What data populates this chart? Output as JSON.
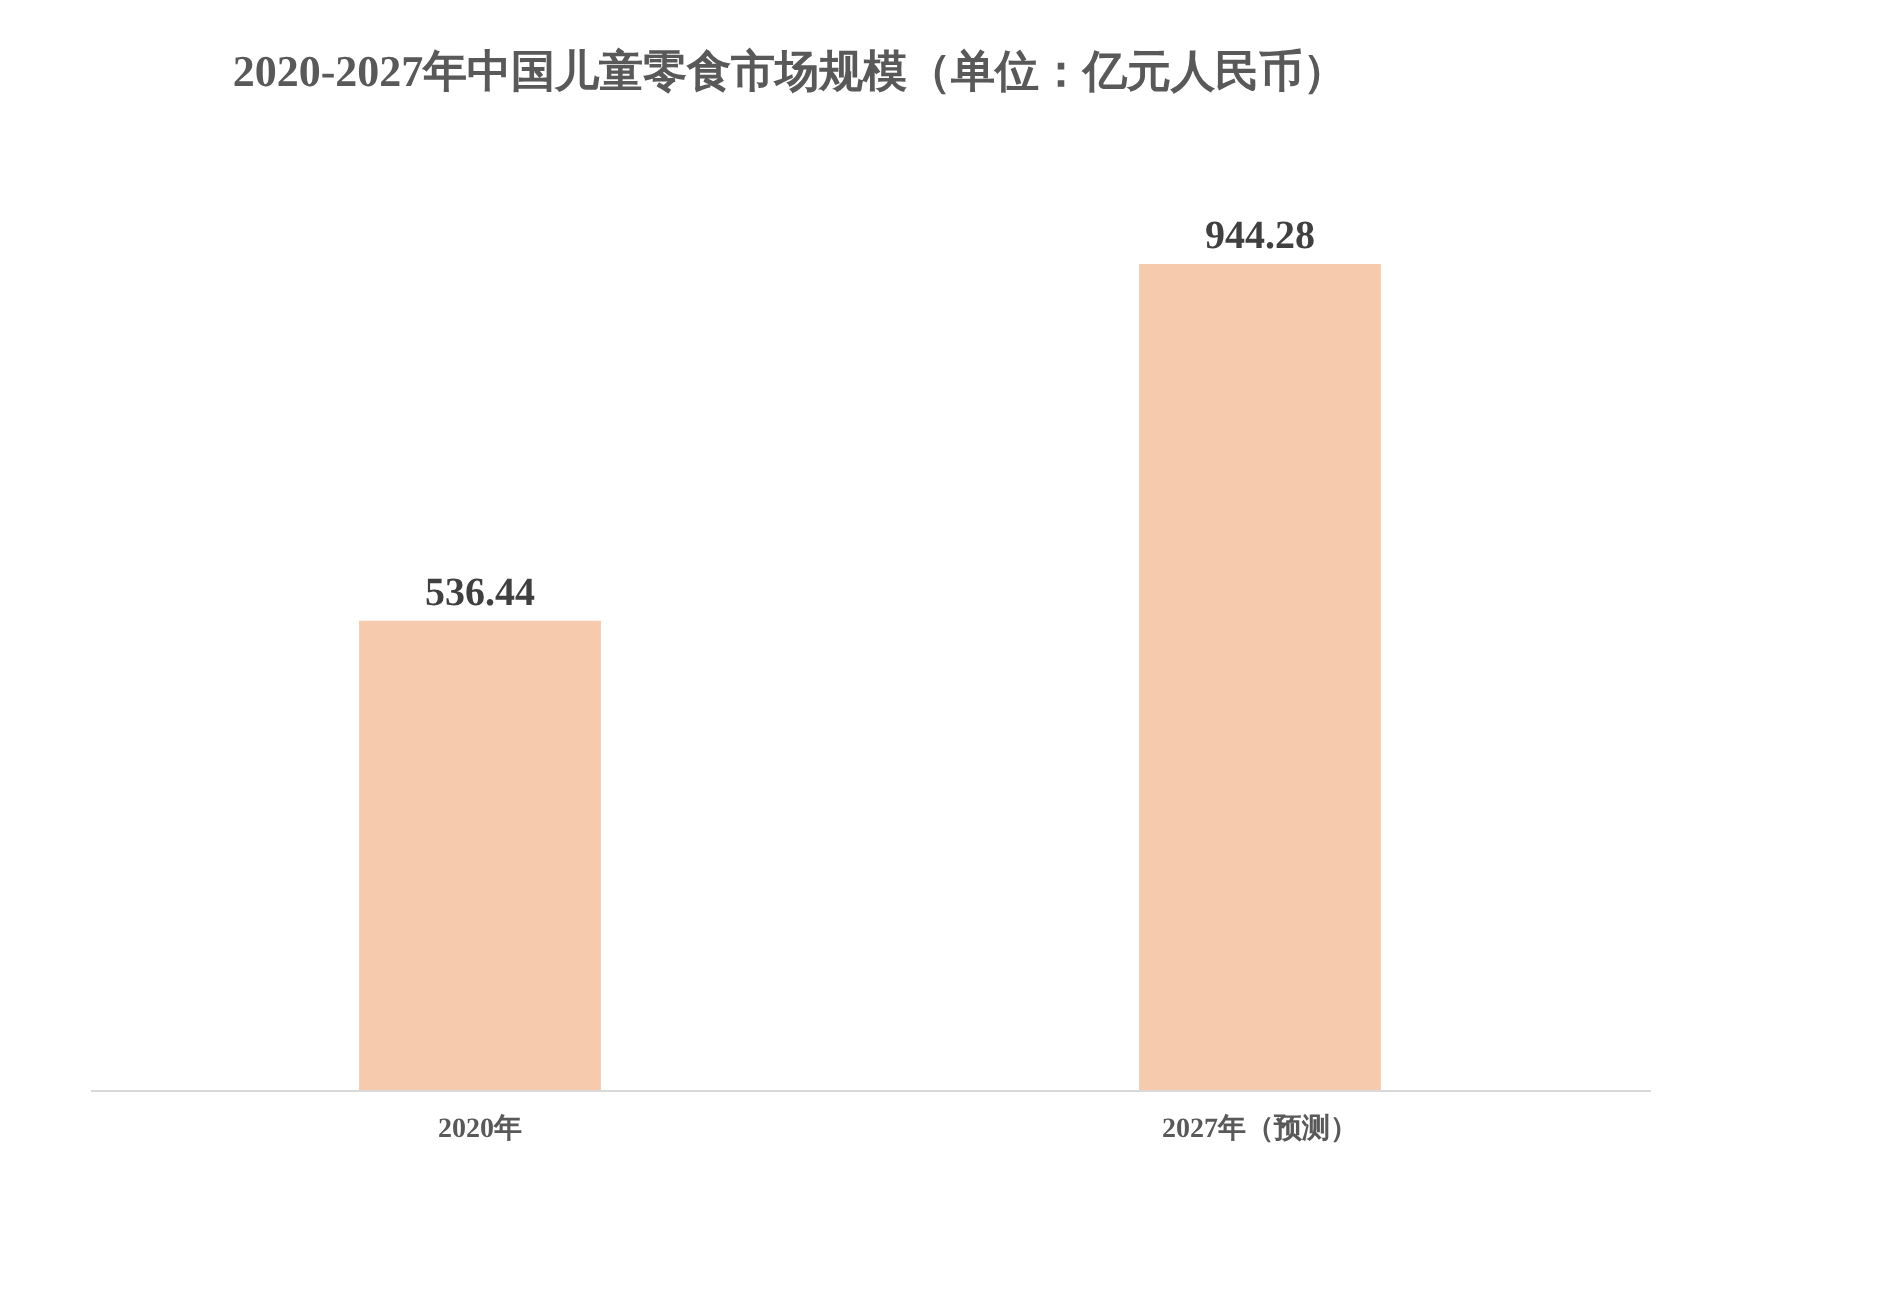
{
  "chart_data": {
    "type": "bar",
    "title": "2020-2027年中国儿童零食市场规模（单位：亿元人民币）",
    "categories": [
      "2020年",
      "2027年（预测）"
    ],
    "values": [
      536.44,
      944.28
    ],
    "color": "#f6cbad",
    "data_labels": true
  }
}
